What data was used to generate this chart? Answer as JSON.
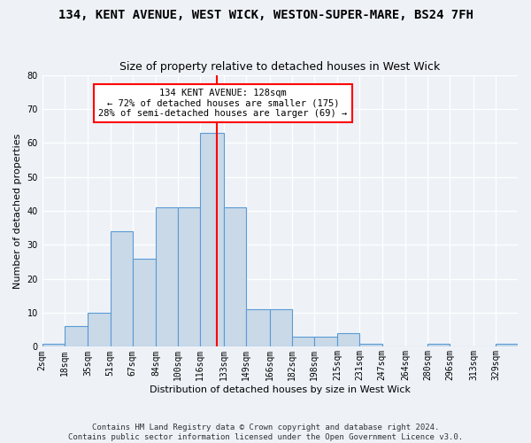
{
  "title": "134, KENT AVENUE, WEST WICK, WESTON-SUPER-MARE, BS24 7FH",
  "subtitle": "Size of property relative to detached houses in West Wick",
  "xlabel": "Distribution of detached houses by size in West Wick",
  "ylabel": "Number of detached properties",
  "bar_color": "#c9d9e8",
  "bar_edge_color": "#5b9bd5",
  "reference_line_color": "red",
  "bin_edges": [
    2,
    18,
    35,
    51,
    67,
    84,
    100,
    116,
    133,
    149,
    166,
    182,
    198,
    215,
    231,
    247,
    264,
    280,
    296,
    313,
    329,
    345
  ],
  "bin_labels": [
    "2sqm",
    "18sqm",
    "35sqm",
    "51sqm",
    "67sqm",
    "84sqm",
    "100sqm",
    "116sqm",
    "133sqm",
    "149sqm",
    "166sqm",
    "182sqm",
    "198sqm",
    "215sqm",
    "231sqm",
    "247sqm",
    "264sqm",
    "280sqm",
    "296sqm",
    "313sqm",
    "329sqm"
  ],
  "counts": [
    1,
    6,
    10,
    34,
    26,
    41,
    41,
    63,
    41,
    11,
    11,
    3,
    3,
    4,
    1,
    0,
    0,
    1,
    0,
    0,
    1
  ],
  "reference_line_x": 128,
  "annotation_text": "134 KENT AVENUE: 128sqm\n← 72% of detached houses are smaller (175)\n28% of semi-detached houses are larger (69) →",
  "footer_line1": "Contains HM Land Registry data © Crown copyright and database right 2024.",
  "footer_line2": "Contains public sector information licensed under the Open Government Licence v3.0.",
  "ylim": [
    0,
    80
  ],
  "yticks": [
    0,
    10,
    20,
    30,
    40,
    50,
    60,
    70,
    80
  ],
  "bg_color": "#eef2f7",
  "grid_color": "#ffffff",
  "title_fontsize": 10,
  "subtitle_fontsize": 9,
  "label_fontsize": 8,
  "tick_fontsize": 7,
  "annot_fontsize": 7.5,
  "footer_fontsize": 6.5
}
